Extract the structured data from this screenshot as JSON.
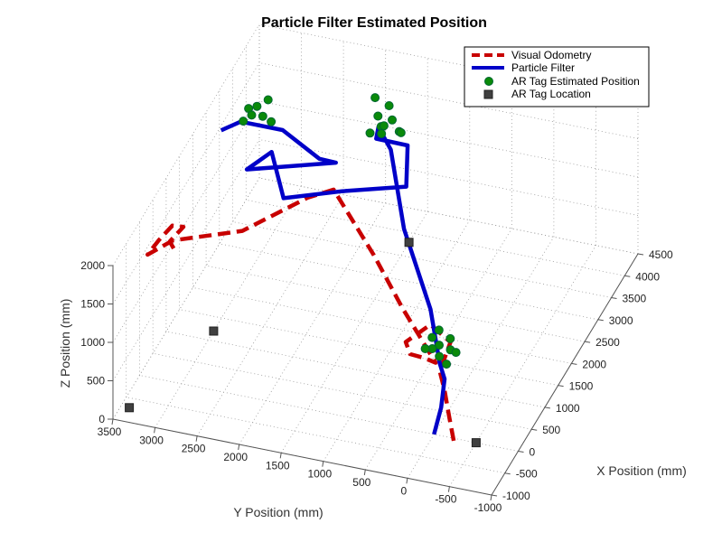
{
  "chart_data": {
    "type": "line3d",
    "title": "Particle Filter Estimated Position",
    "xlabel": "X Position (mm)",
    "ylabel": "Y Position (mm)",
    "zlabel": "Z Position (mm)",
    "xlim": [
      -1000,
      4500
    ],
    "ylim": [
      -1000,
      3500
    ],
    "zlim": [
      0,
      2000
    ],
    "x_ticks": [
      "-1000",
      "-500",
      "0",
      "500",
      "1000",
      "1500",
      "2000",
      "2500",
      "3000",
      "3500",
      "4000",
      "4500"
    ],
    "y_ticks": [
      "-1000",
      "-500",
      "0",
      "500",
      "1000",
      "1500",
      "2000",
      "2500",
      "3000",
      "3500"
    ],
    "z_ticks": [
      "0",
      "500",
      "1000",
      "1500",
      "2000"
    ],
    "grid": true,
    "legend_position": "top-right",
    "legend": [
      "Visual Odometry",
      "Particle Filter",
      "AR Tag Estimated Position",
      "AR Tag Location"
    ],
    "colors": {
      "visual_odometry": "#c80000",
      "particle_filter": "#0000c8",
      "ar_estimate": "#0a8a0a",
      "ar_location": "#404040"
    },
    "series": [
      {
        "name": "Visual Odometry",
        "style": "dashed",
        "points": [
          [
            -50,
            -250,
            0
          ],
          [
            -60,
            -200,
            300
          ],
          [
            -80,
            -150,
            650
          ],
          [
            -100,
            -100,
            900
          ],
          [
            300,
            -100,
            1050
          ],
          [
            500,
            200,
            1100
          ],
          [
            200,
            400,
            1000
          ],
          [
            50,
            300,
            950
          ],
          [
            -50,
            100,
            1000
          ],
          [
            -100,
            -50,
            1000
          ],
          [
            400,
            500,
            1300
          ],
          [
            900,
            1000,
            1600
          ],
          [
            1600,
            1700,
            1900
          ],
          [
            1250,
            1900,
            1950
          ],
          [
            700,
            2500,
            1700
          ],
          [
            300,
            3200,
            1650
          ],
          [
            300,
            3500,
            1400
          ],
          [
            400,
            3400,
            1550
          ],
          [
            600,
            3300,
            1650
          ],
          [
            700,
            3200,
            1600
          ],
          [
            500,
            3300,
            1500
          ],
          [
            400,
            3200,
            1450
          ]
        ]
      },
      {
        "name": "Particle Filter",
        "style": "solid",
        "points": [
          [
            0,
            0,
            0
          ],
          [
            -50,
            -100,
            400
          ],
          [
            -80,
            -150,
            800
          ],
          [
            -100,
            -100,
            1000
          ],
          [
            500,
            200,
            1300
          ],
          [
            1400,
            800,
            1700
          ],
          [
            2800,
            1400,
            1800
          ],
          [
            3600,
            1800,
            1550
          ],
          [
            3200,
            1700,
            1650
          ],
          [
            2800,
            1200,
            1900
          ],
          [
            1800,
            900,
            2000
          ],
          [
            1600,
            1600,
            1900
          ],
          [
            1300,
            2200,
            1850
          ],
          [
            1800,
            2500,
            2100
          ],
          [
            1500,
            2700,
            2000
          ],
          [
            2000,
            1800,
            2000
          ],
          [
            1700,
            1900,
            2200
          ],
          [
            1900,
            2400,
            2350
          ],
          [
            1900,
            2900,
            2350
          ],
          [
            1800,
            3100,
            2250
          ]
        ]
      }
    ],
    "ar_estimates": [
      [
        300,
        -100,
        950
      ],
      [
        450,
        -50,
        1000
      ],
      [
        350,
        50,
        950
      ],
      [
        200,
        0,
        900
      ],
      [
        500,
        100,
        1050
      ],
      [
        250,
        100,
        950
      ],
      [
        350,
        -150,
        900
      ],
      [
        150,
        -100,
        850
      ],
      [
        400,
        150,
        1000
      ],
      [
        300,
        200,
        900
      ],
      [
        3700,
        1800,
        1500
      ],
      [
        3800,
        1700,
        1550
      ],
      [
        3900,
        1900,
        1500
      ],
      [
        3600,
        1900,
        1450
      ],
      [
        3650,
        1750,
        1550
      ],
      [
        4000,
        1800,
        1600
      ],
      [
        3750,
        1600,
        1450
      ],
      [
        3950,
        1950,
        1700
      ],
      [
        3500,
        1500,
        1600
      ],
      [
        3400,
        1700,
        1600
      ],
      [
        2100,
        2700,
        2350
      ],
      [
        2200,
        2800,
        2400
      ],
      [
        2000,
        2900,
        2300
      ],
      [
        2300,
        2700,
        2450
      ],
      [
        2100,
        2600,
        2300
      ],
      [
        2200,
        2900,
        2350
      ],
      [
        2000,
        2800,
        2400
      ]
    ],
    "ar_locations": [
      [
        0,
        -500,
        0
      ],
      [
        3800,
        1500,
        0
      ],
      [
        1200,
        3000,
        0
      ],
      [
        -700,
        3400,
        0
      ]
    ]
  }
}
